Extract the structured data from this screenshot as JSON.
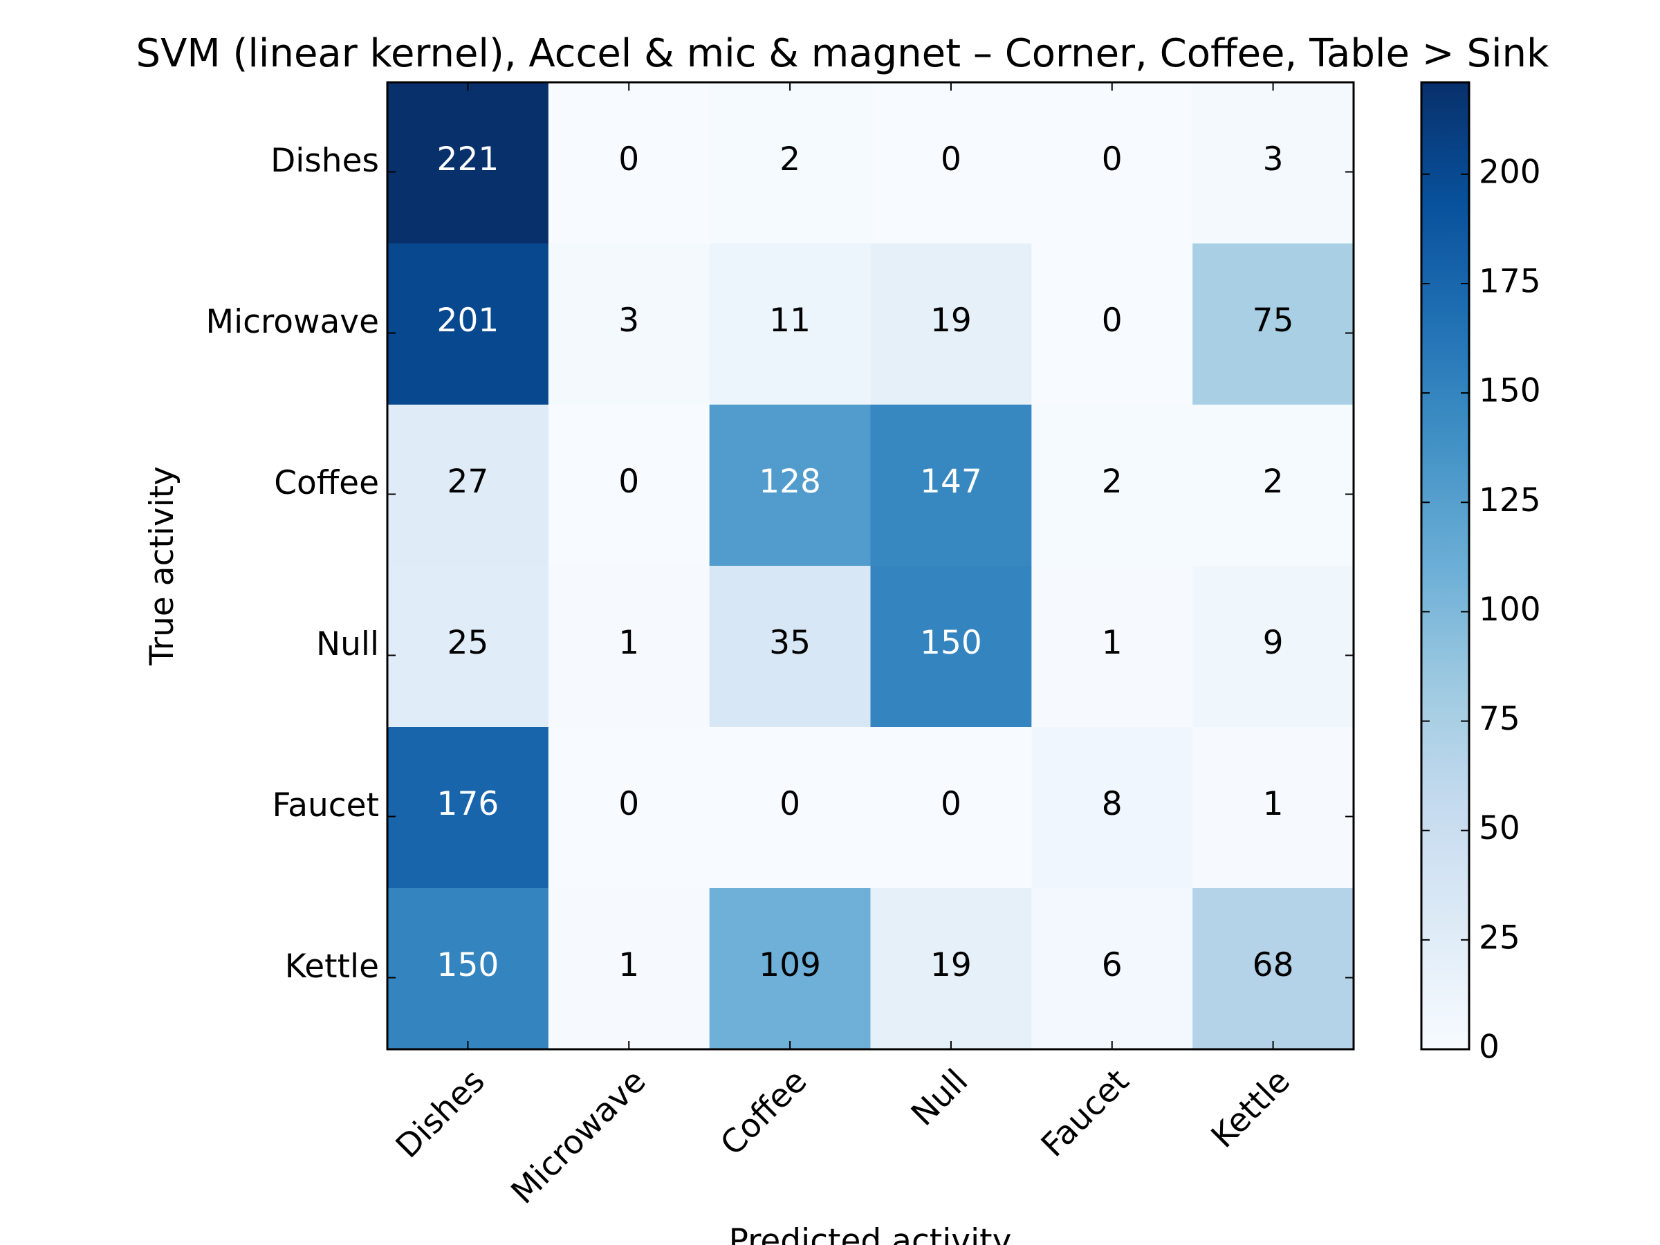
{
  "chart_data": {
    "type": "heatmap",
    "title": "SVM (linear kernel), Accel & mic & magnet – Corner, Coffee, Table > Sink",
    "xlabel": "Predicted activity",
    "ylabel": "True activity",
    "x_categories": [
      "Dishes",
      "Microwave",
      "Coffee",
      "Null",
      "Faucet",
      "Kettle"
    ],
    "y_categories": [
      "Dishes",
      "Microwave",
      "Coffee",
      "Null",
      "Faucet",
      "Kettle"
    ],
    "values": [
      [
        221,
        0,
        2,
        0,
        0,
        3
      ],
      [
        201,
        3,
        11,
        19,
        0,
        75
      ],
      [
        27,
        0,
        128,
        147,
        2,
        2
      ],
      [
        25,
        1,
        35,
        150,
        1,
        9
      ],
      [
        176,
        0,
        0,
        0,
        8,
        1
      ],
      [
        150,
        1,
        109,
        19,
        6,
        68
      ]
    ],
    "colormap": "Blues",
    "vmin": 0,
    "vmax": 221,
    "colorbar_ticks": [
      0,
      25,
      50,
      75,
      100,
      125,
      150,
      175,
      200
    ],
    "colorbar_tick_labels": [
      "0",
      "25",
      "50",
      "75",
      "100",
      "125",
      "150",
      "175",
      "200"
    ],
    "cell_text_threshold": 110.5,
    "cell_text_colors": {
      "light": "#ffffff",
      "dark": "#000000"
    }
  }
}
